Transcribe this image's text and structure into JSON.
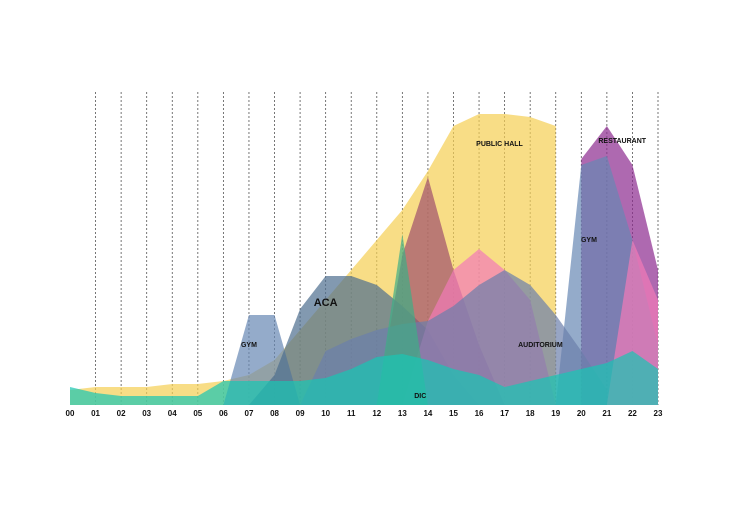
{
  "chart_data": {
    "type": "area",
    "categories": [
      "00",
      "01",
      "02",
      "03",
      "04",
      "05",
      "06",
      "07",
      "08",
      "09",
      "10",
      "11",
      "12",
      "13",
      "14",
      "15",
      "16",
      "17",
      "18",
      "19",
      "20",
      "21",
      "22",
      "23"
    ],
    "ylim": [
      0,
      100
    ],
    "grid": true,
    "series": [
      {
        "color": "#f5cf52",
        "values": [
          5,
          6,
          6,
          6,
          7,
          7,
          8,
          10,
          15,
          25,
          35,
          45,
          55,
          65,
          78,
          93,
          97,
          97,
          96,
          93,
          null,
          null,
          null,
          null
        ]
      },
      {
        "color": "#8c2a8e",
        "values": [
          null,
          null,
          null,
          null,
          null,
          null,
          null,
          null,
          null,
          null,
          null,
          null,
          null,
          null,
          null,
          null,
          null,
          null,
          null,
          null,
          82,
          93,
          80,
          45
        ]
      },
      {
        "color": "#6688b4",
        "values": [
          null,
          null,
          null,
          null,
          null,
          null,
          0,
          30,
          30,
          0,
          null,
          null,
          null,
          null,
          null,
          null,
          null,
          null,
          null,
          0,
          80,
          83,
          55,
          20
        ]
      },
      {
        "color": "#4d6d8e",
        "values": [
          null,
          null,
          null,
          null,
          null,
          null,
          null,
          0,
          10,
          32,
          43,
          43,
          40,
          33,
          25,
          10,
          0,
          null,
          null,
          null,
          null,
          null,
          null,
          null
        ]
      },
      {
        "color": "#a0506c",
        "values": [
          null,
          null,
          null,
          null,
          null,
          null,
          null,
          null,
          null,
          null,
          null,
          null,
          0,
          50,
          76,
          45,
          20,
          0,
          null,
          null,
          null,
          null,
          null,
          null
        ]
      },
      {
        "color": "#f27ab8",
        "values": [
          null,
          null,
          null,
          null,
          null,
          null,
          null,
          null,
          null,
          null,
          null,
          null,
          null,
          0,
          28,
          45,
          52,
          45,
          35,
          0,
          null,
          0,
          55,
          35
        ]
      },
      {
        "color": "#6b7fab",
        "values": [
          null,
          null,
          null,
          null,
          null,
          null,
          null,
          null,
          null,
          0,
          18,
          22,
          25,
          27,
          28,
          33,
          40,
          45,
          40,
          30,
          18,
          5,
          null,
          null
        ]
      },
      {
        "color": "#3fae86",
        "values": [
          null,
          null,
          null,
          null,
          null,
          null,
          null,
          null,
          null,
          null,
          null,
          null,
          0,
          57,
          0,
          null,
          null,
          null,
          null,
          null,
          null,
          null,
          null,
          null
        ]
      },
      {
        "color": "#18c6b4",
        "values": [
          6,
          4,
          3,
          3,
          3,
          3,
          8,
          8,
          8,
          8,
          9,
          12,
          16,
          17,
          15,
          12,
          10,
          6,
          8,
          10,
          12,
          14,
          18,
          12
        ]
      }
    ],
    "annotations": [
      {
        "text": "PUBLIC HALL",
        "x": 16.8,
        "y": 87
      },
      {
        "text": "RESTAURANT",
        "x": 21.6,
        "y": 88
      },
      {
        "text": "GYM",
        "x": 7,
        "y": 20
      },
      {
        "text": "GYM",
        "x": 20.3,
        "y": 55
      },
      {
        "text": "ACA",
        "x": 10,
        "y": 34
      },
      {
        "text": "AUDITORIUM",
        "x": 18.4,
        "y": 20
      },
      {
        "text": "DIC",
        "x": 13.7,
        "y": 3
      }
    ]
  }
}
